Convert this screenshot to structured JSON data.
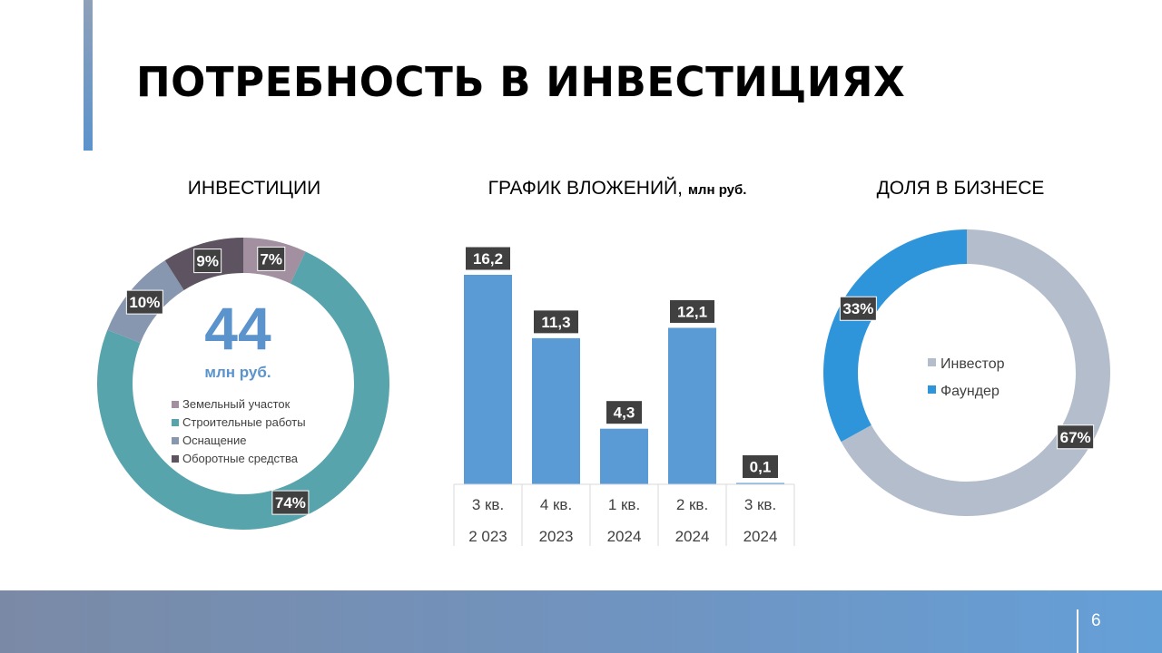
{
  "slide": {
    "title": "ПОТРЕБНОСТЬ В ИНВЕСТИЦИЯХ",
    "page_number": "6",
    "colors": {
      "accent": "#5b93cc",
      "footer": "#6f95c3"
    }
  },
  "sections": {
    "investments": {
      "title": "ИНВЕСТИЦИИ",
      "total_value": "44",
      "total_unit": "млн руб."
    },
    "schedule": {
      "title": "ГРАФИК ВЛОЖЕНИЙ,",
      "title_unit": "млн руб."
    },
    "share": {
      "title": "ДОЛЯ В БИЗНЕСЕ"
    }
  },
  "chart_data": [
    {
      "type": "pie",
      "variant": "donut",
      "title": "ИНВЕСТИЦИИ",
      "center_text": "44",
      "center_subtext": "млн руб.",
      "categories": [
        "Земельный участок",
        "Строительные работы",
        "Оснащение",
        "Оборотные средства"
      ],
      "values": [
        7,
        74,
        10,
        9
      ],
      "labels": [
        "7%",
        "74%",
        "10%",
        "9%"
      ],
      "colors": [
        "#a28fa0",
        "#58a4ac",
        "#8797b0",
        "#5e5360"
      ],
      "legend": "center"
    },
    {
      "type": "bar",
      "title": "ГРАФИК ВЛОЖЕНИЙ, млн руб.",
      "categories": [
        [
          "3 кв.",
          "2 023"
        ],
        [
          "4 кв.",
          "2023"
        ],
        [
          "1 кв.",
          "2024"
        ],
        [
          "2 кв.",
          "2024"
        ],
        [
          "3 кв.",
          "2024"
        ]
      ],
      "values": [
        16.2,
        11.3,
        4.3,
        12.1,
        0.1
      ],
      "labels": [
        "16,2",
        "11,3",
        "4,3",
        "12,1",
        "0,1"
      ],
      "color": "#5b9bd5",
      "grid": false
    },
    {
      "type": "pie",
      "variant": "donut",
      "title": "ДОЛЯ В БИЗНЕСЕ",
      "categories": [
        "Инвестор",
        "Фаундер"
      ],
      "values": [
        67,
        33
      ],
      "labels": [
        "67%",
        "33%"
      ],
      "colors": [
        "#b3bdcc",
        "#2e95db"
      ],
      "legend": "center"
    }
  ]
}
